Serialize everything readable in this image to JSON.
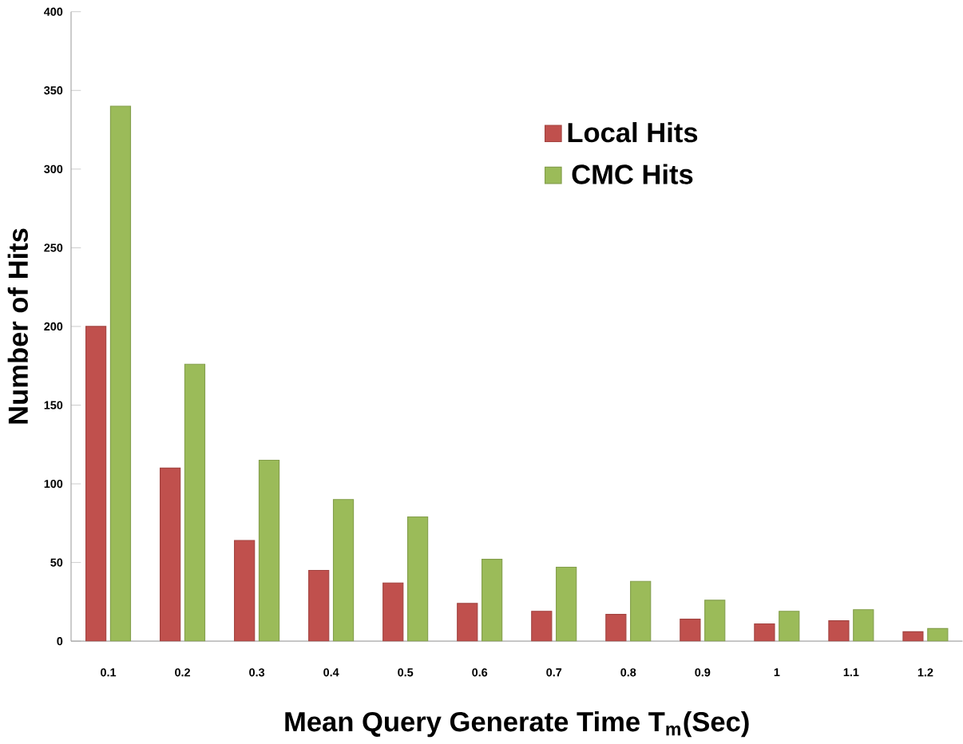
{
  "chart_data": {
    "type": "bar",
    "xlabel": "Mean Query Generate Time T$_{m}$(Sec)",
    "ylabel": "Number of Hits",
    "categories": [
      "0.1",
      "0.2",
      "0.3",
      "0.4",
      "0.5",
      "0.6",
      "0.7",
      "0.8",
      "0.9",
      "1",
      "1.1",
      "1.2"
    ],
    "series": [
      {
        "name": "Local Hits",
        "color": "#c0504d",
        "values": [
          200,
          110,
          64,
          45,
          37,
          24,
          19,
          17,
          14,
          11,
          13,
          6
        ]
      },
      {
        "name": "CMC Hits",
        "color": "#9bbb59",
        "values": [
          340,
          176,
          115,
          90,
          79,
          52,
          47,
          38,
          26,
          19,
          20,
          8
        ]
      }
    ],
    "ylim": [
      0,
      400
    ],
    "yticks": [
      0,
      50,
      100,
      150,
      200,
      250,
      300,
      350,
      400
    ],
    "grid": false,
    "legend": "top"
  }
}
